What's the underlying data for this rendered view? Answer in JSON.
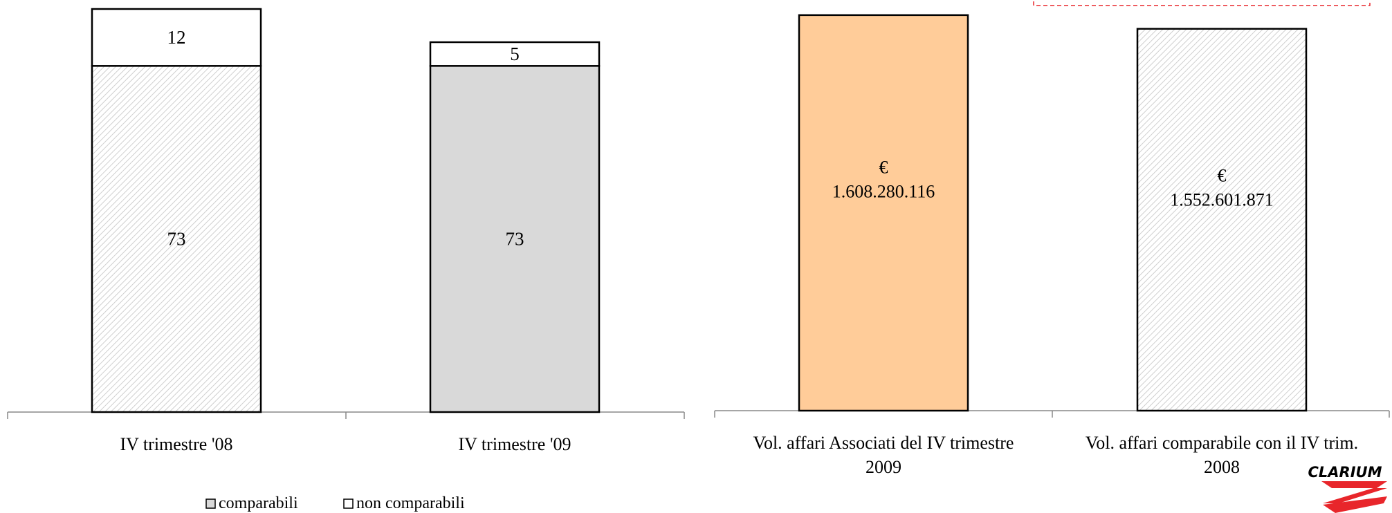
{
  "chart_data": [
    {
      "type": "bar",
      "stacked": true,
      "categories": [
        "IV trimestre '08",
        "IV trimestre '09"
      ],
      "series": [
        {
          "name": "comparabili",
          "values": [
            73,
            73
          ]
        },
        {
          "name": "non comparabili",
          "values": [
            12,
            5
          ]
        }
      ],
      "data_labels": [
        [
          "73",
          "73"
        ],
        [
          "12",
          "5"
        ]
      ],
      "legend": [
        "comparabili",
        "non comparabili"
      ],
      "legend_position": "bottom",
      "ylim": [
        0,
        85
      ],
      "grid": false
    },
    {
      "type": "bar",
      "categories": [
        [
          "Vol. affari Associati del IV trimestre",
          "2009"
        ],
        [
          "Vol. affari comparabile con il IV trim.",
          "2008"
        ]
      ],
      "values": [
        1608280116,
        1552601871
      ],
      "data_labels": [
        [
          "€",
          "1.608.280.116"
        ],
        [
          "€",
          "1.552.601.871"
        ]
      ],
      "colors": [
        "#FFCC99",
        "#FFFFFF"
      ],
      "ylim": [
        0,
        1650000000
      ],
      "grid": false
    }
  ],
  "logo": {
    "text": "CLARIUM",
    "color": "#E8262B"
  },
  "colors": {
    "border": "#000000",
    "gray": "#D9D9D9",
    "orange": "#FFCC99",
    "hatch": "#C8C8C8",
    "dashed_box": "#E8262B"
  }
}
